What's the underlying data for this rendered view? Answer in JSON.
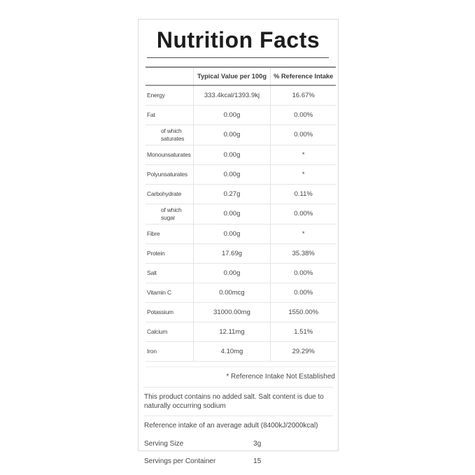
{
  "title": "Nutrition Facts",
  "table": {
    "columns": [
      "Typical Value per 100g",
      "% Reference Intake"
    ],
    "rows": [
      {
        "label": "Energy",
        "value": "333.4kcal/1393.9kj",
        "reference_intake": "16.67%",
        "sub": false
      },
      {
        "label": "Fat",
        "value": "0.00g",
        "reference_intake": "0.00%",
        "sub": false
      },
      {
        "label": "of which saturates",
        "value": "0.00g",
        "reference_intake": "0.00%",
        "sub": true
      },
      {
        "label": "Monounsaturates",
        "value": "0.00g",
        "reference_intake": "*",
        "sub": false
      },
      {
        "label": "Polyunsaturates",
        "value": "0.00g",
        "reference_intake": "*",
        "sub": false
      },
      {
        "label": "Carbohydrate",
        "value": "0.27g",
        "reference_intake": "0.11%",
        "sub": false
      },
      {
        "label": "of which sugar",
        "value": "0.00g",
        "reference_intake": "0.00%",
        "sub": true
      },
      {
        "label": "Fibre",
        "value": "0.00g",
        "reference_intake": "*",
        "sub": false
      },
      {
        "label": "Protein",
        "value": "17.69g",
        "reference_intake": "35.38%",
        "sub": false
      },
      {
        "label": "Salt",
        "value": "0.00g",
        "reference_intake": "0.00%",
        "sub": false
      },
      {
        "label": "Vitamin C",
        "value": "0.00mcg",
        "reference_intake": "0.00%",
        "sub": false
      },
      {
        "label": "Potassium",
        "value": "31000.00mg",
        "reference_intake": "1550.00%",
        "sub": false
      },
      {
        "label": "Calcium",
        "value": "12.11mg",
        "reference_intake": "1.51%",
        "sub": false
      },
      {
        "label": "Iron",
        "value": "4.10mg",
        "reference_intake": "29.29%",
        "sub": false
      }
    ]
  },
  "footnote": "* Reference Intake Not Established",
  "notes": {
    "salt": "This product contains no added salt. Salt content is due to naturally occurring sodium",
    "reference": "Reference intake of an average adult (8400kJ/2000kcal)"
  },
  "serving": [
    {
      "label": "Serving Size",
      "value": "3g"
    },
    {
      "label": "Servings per Container",
      "value": "15"
    }
  ],
  "colors": {
    "title_text": "#1d1d1d",
    "body_text": "#454545",
    "rule_dark": "#8b8b8b",
    "rule_light": "#e6e6e6",
    "card_border": "#d9d9d9"
  }
}
